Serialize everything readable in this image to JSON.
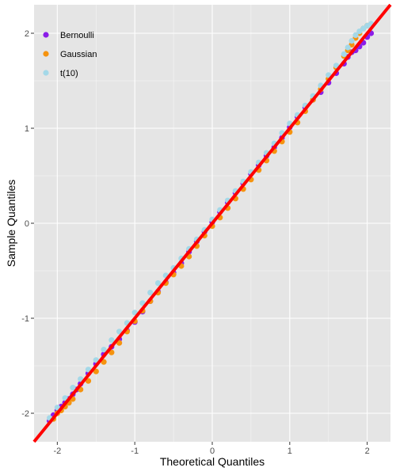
{
  "chart_data": {
    "type": "scatter",
    "title": "",
    "xlabel": "Theoretical Quantiles",
    "ylabel": "Sample Quantiles",
    "xlim": [
      -2.3,
      2.3
    ],
    "ylim": [
      -2.3,
      2.3
    ],
    "x_ticks": [
      -2,
      -1,
      0,
      1,
      2
    ],
    "y_ticks": [
      -2,
      -1,
      0,
      1,
      2
    ],
    "x_tick_labels": [
      "-2",
      "-1",
      "0",
      "1",
      "2"
    ],
    "y_tick_labels": [
      "-2",
      "-1",
      "0",
      "1",
      "2"
    ],
    "grid": true,
    "legend_position": "top-left",
    "panel_background": "#e5e5e5",
    "grid_color": "#ffffff",
    "series": [
      {
        "name": "Bernoulli",
        "color": "#8b1de8",
        "points": [
          [
            -2.1,
            -2.08
          ],
          [
            -2.05,
            -2.02
          ],
          [
            -2.0,
            -1.97
          ],
          [
            -1.95,
            -1.93
          ],
          [
            -1.9,
            -1.89
          ],
          [
            -1.85,
            -1.85
          ],
          [
            -1.8,
            -1.8
          ],
          [
            -1.75,
            -1.75
          ],
          [
            -1.7,
            -1.69
          ],
          [
            -1.6,
            -1.58
          ],
          [
            -1.5,
            -1.48
          ],
          [
            -1.4,
            -1.38
          ],
          [
            -1.3,
            -1.3
          ],
          [
            -1.2,
            -1.22
          ],
          [
            -1.1,
            -1.13
          ],
          [
            -1.0,
            -1.04
          ],
          [
            -0.9,
            -0.93
          ],
          [
            -0.8,
            -0.82
          ],
          [
            -0.7,
            -0.72
          ],
          [
            -0.6,
            -0.62
          ],
          [
            -0.5,
            -0.52
          ],
          [
            -0.4,
            -0.42
          ],
          [
            -0.3,
            -0.3
          ],
          [
            -0.2,
            -0.19
          ],
          [
            -0.1,
            -0.09
          ],
          [
            0.0,
            0.01
          ],
          [
            0.1,
            0.12
          ],
          [
            0.2,
            0.22
          ],
          [
            0.3,
            0.32
          ],
          [
            0.4,
            0.42
          ],
          [
            0.5,
            0.52
          ],
          [
            0.6,
            0.61
          ],
          [
            0.7,
            0.71
          ],
          [
            0.8,
            0.8
          ],
          [
            0.9,
            0.9
          ],
          [
            1.0,
            1.01
          ],
          [
            1.1,
            1.12
          ],
          [
            1.2,
            1.22
          ],
          [
            1.3,
            1.3
          ],
          [
            1.4,
            1.38
          ],
          [
            1.5,
            1.48
          ],
          [
            1.6,
            1.58
          ],
          [
            1.7,
            1.68
          ],
          [
            1.75,
            1.75
          ],
          [
            1.8,
            1.8
          ],
          [
            1.85,
            1.82
          ],
          [
            1.9,
            1.86
          ],
          [
            1.95,
            1.9
          ],
          [
            2.0,
            1.96
          ],
          [
            2.05,
            2.0
          ]
        ]
      },
      {
        "name": "Gaussian",
        "color": "#f5930f",
        "points": [
          [
            -2.05,
            -2.06
          ],
          [
            -2.0,
            -2.0
          ],
          [
            -1.95,
            -1.97
          ],
          [
            -1.9,
            -1.93
          ],
          [
            -1.85,
            -1.89
          ],
          [
            -1.8,
            -1.85
          ],
          [
            -1.7,
            -1.75
          ],
          [
            -1.6,
            -1.66
          ],
          [
            -1.5,
            -1.56
          ],
          [
            -1.4,
            -1.46
          ],
          [
            -1.3,
            -1.36
          ],
          [
            -1.2,
            -1.26
          ],
          [
            -1.1,
            -1.14
          ],
          [
            -1.0,
            -1.03
          ],
          [
            -0.9,
            -0.92
          ],
          [
            -0.8,
            -0.82
          ],
          [
            -0.7,
            -0.73
          ],
          [
            -0.6,
            -0.63
          ],
          [
            -0.5,
            -0.54
          ],
          [
            -0.4,
            -0.45
          ],
          [
            -0.3,
            -0.35
          ],
          [
            -0.2,
            -0.24
          ],
          [
            -0.1,
            -0.13
          ],
          [
            0.0,
            -0.03
          ],
          [
            0.1,
            0.06
          ],
          [
            0.2,
            0.16
          ],
          [
            0.3,
            0.26
          ],
          [
            0.4,
            0.36
          ],
          [
            0.5,
            0.46
          ],
          [
            0.6,
            0.56
          ],
          [
            0.7,
            0.66
          ],
          [
            0.8,
            0.76
          ],
          [
            0.9,
            0.86
          ],
          [
            1.0,
            0.96
          ],
          [
            1.1,
            1.06
          ],
          [
            1.2,
            1.18
          ],
          [
            1.3,
            1.3
          ],
          [
            1.4,
            1.41
          ],
          [
            1.5,
            1.52
          ],
          [
            1.6,
            1.64
          ],
          [
            1.7,
            1.76
          ],
          [
            1.75,
            1.82
          ],
          [
            1.8,
            1.88
          ],
          [
            1.85,
            1.95
          ],
          [
            1.9,
            2.0
          ],
          [
            1.95,
            2.05
          ],
          [
            2.0,
            2.08
          ]
        ]
      },
      {
        "name": "t(10)",
        "color": "#a4d8e8",
        "points": [
          [
            -2.1,
            -2.05
          ],
          [
            -2.0,
            -1.94
          ],
          [
            -1.9,
            -1.84
          ],
          [
            -1.8,
            -1.73
          ],
          [
            -1.7,
            -1.64
          ],
          [
            -1.6,
            -1.54
          ],
          [
            -1.5,
            -1.44
          ],
          [
            -1.4,
            -1.33
          ],
          [
            -1.3,
            -1.23
          ],
          [
            -1.2,
            -1.14
          ],
          [
            -1.1,
            -1.05
          ],
          [
            -1.0,
            -0.94
          ],
          [
            -0.9,
            -0.84
          ],
          [
            -0.8,
            -0.73
          ],
          [
            -0.7,
            -0.63
          ],
          [
            -0.6,
            -0.55
          ],
          [
            -0.5,
            -0.47
          ],
          [
            -0.4,
            -0.37
          ],
          [
            -0.3,
            -0.27
          ],
          [
            -0.2,
            -0.17
          ],
          [
            -0.1,
            -0.07
          ],
          [
            0.0,
            0.04
          ],
          [
            0.1,
            0.14
          ],
          [
            0.2,
            0.24
          ],
          [
            0.3,
            0.34
          ],
          [
            0.4,
            0.44
          ],
          [
            0.5,
            0.54
          ],
          [
            0.6,
            0.64
          ],
          [
            0.7,
            0.74
          ],
          [
            0.8,
            0.84
          ],
          [
            0.9,
            0.95
          ],
          [
            1.0,
            1.05
          ],
          [
            1.1,
            1.14
          ],
          [
            1.2,
            1.24
          ],
          [
            1.3,
            1.34
          ],
          [
            1.4,
            1.45
          ],
          [
            1.5,
            1.56
          ],
          [
            1.6,
            1.66
          ],
          [
            1.7,
            1.78
          ],
          [
            1.75,
            1.85
          ],
          [
            1.8,
            1.92
          ],
          [
            1.85,
            1.98
          ],
          [
            1.9,
            2.02
          ],
          [
            1.95,
            2.05
          ],
          [
            2.0,
            2.08
          ],
          [
            2.05,
            2.1
          ]
        ]
      }
    ],
    "reference_line": {
      "color": "#ff0000",
      "x": [
        -2.3,
        2.3
      ],
      "y": [
        -2.3,
        2.3
      ]
    }
  }
}
